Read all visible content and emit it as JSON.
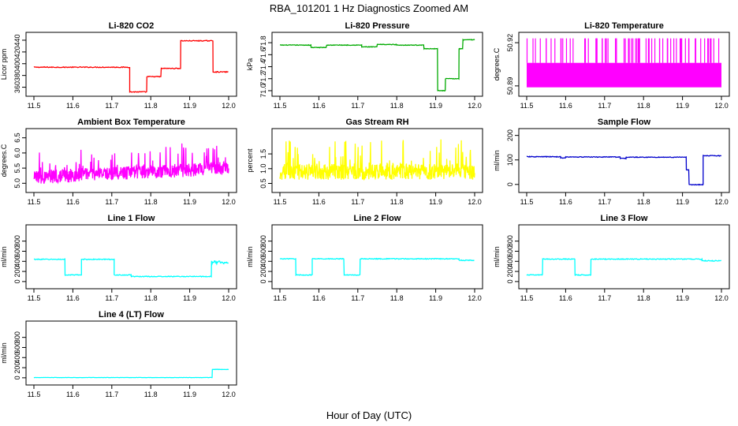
{
  "title": "RBA_101201  1 Hz Diagnostics Zoomed AM",
  "xlabel": "Hour of Day (UTC)",
  "chart_data": [
    {
      "type": "line",
      "title": "Li-820 CO2",
      "ylabel": "Licor ppm",
      "color": "#ff0000",
      "xlim": [
        11.5,
        12.0
      ],
      "ylim": [
        350,
        448
      ],
      "xticks": [
        "11.5",
        "11.6",
        "11.7",
        "11.8",
        "11.9",
        "12.0"
      ],
      "yticks": [
        "360",
        "380",
        "400",
        "420",
        "440"
      ],
      "noise": 0.7,
      "segments": [
        {
          "x0": 11.5,
          "x1": 11.746,
          "y": 394
        },
        {
          "x0": 11.746,
          "x1": 11.79,
          "y": 352
        },
        {
          "x0": 11.79,
          "x1": 11.827,
          "y": 378
        },
        {
          "x0": 11.827,
          "x1": 11.877,
          "y": 392
        },
        {
          "x0": 11.877,
          "x1": 11.96,
          "y": 439
        },
        {
          "x0": 11.96,
          "x1": 12.0,
          "y": 386
        }
      ]
    },
    {
      "type": "line",
      "title": "Li-820 Pressure",
      "ylabel": "kPa",
      "color": "#00aa00",
      "xlim": [
        11.5,
        12.0
      ],
      "ylim": [
        70.96,
        71.92
      ],
      "xticks": [
        "11.5",
        "11.6",
        "11.7",
        "11.8",
        "11.9",
        "12.0"
      ],
      "yticks": [
        "71.0",
        "71.2",
        "71.4",
        "71.6",
        "71.8"
      ],
      "noise": 0.005,
      "segments": [
        {
          "x0": 11.5,
          "x1": 11.58,
          "y": 71.76
        },
        {
          "x0": 11.58,
          "x1": 11.62,
          "y": 71.72
        },
        {
          "x0": 11.62,
          "x1": 11.71,
          "y": 71.76
        },
        {
          "x0": 11.71,
          "x1": 11.75,
          "y": 71.73
        },
        {
          "x0": 11.75,
          "x1": 11.8,
          "y": 71.77
        },
        {
          "x0": 11.8,
          "x1": 11.87,
          "y": 71.76
        },
        {
          "x0": 11.87,
          "x1": 11.905,
          "y": 71.7
        },
        {
          "x0": 11.905,
          "x1": 11.925,
          "y": 71.0
        },
        {
          "x0": 11.925,
          "x1": 11.96,
          "y": 71.2
        },
        {
          "x0": 11.96,
          "x1": 11.97,
          "y": 71.7
        },
        {
          "x0": 11.97,
          "x1": 12.0,
          "y": 71.85
        }
      ]
    },
    {
      "type": "line",
      "title": "Li-820 Temperature",
      "ylabel": "degrees.C",
      "color": "#ff00ff",
      "xlim": [
        11.5,
        12.0
      ],
      "ylim": [
        50.885,
        50.925
      ],
      "xticks": [
        "11.5",
        "11.6",
        "11.7",
        "11.8",
        "11.9",
        "12.0"
      ],
      "yticks": [
        "50.89",
        "50.92"
      ],
      "band": {
        "low": 50.889,
        "high": 50.906
      },
      "spikes_to": 50.923
    },
    {
      "type": "line",
      "title": "Ambient Box Temperature",
      "ylabel": "degrees.C",
      "color": "#ff00ff",
      "xlim": [
        11.5,
        12.0
      ],
      "ylim": [
        4.8,
        6.7
      ],
      "xticks": [
        "11.5",
        "11.6",
        "11.7",
        "11.8",
        "11.9",
        "12.0"
      ],
      "yticks": [
        "5.0",
        "5.5",
        "6.0",
        "6.5"
      ],
      "noisy": {
        "center_start": 5.2,
        "center_end": 5.5,
        "amp": 0.45
      }
    },
    {
      "type": "line",
      "title": "Gas Stream RH",
      "ylabel": "percent",
      "color": "#ffff00",
      "xlim": [
        11.5,
        12.0
      ],
      "ylim": [
        0.3,
        2.25
      ],
      "xticks": [
        "11.5",
        "11.6",
        "11.7",
        "11.8",
        "11.9",
        "12.0"
      ],
      "yticks": [
        "0.5",
        "1.0",
        "1.5"
      ],
      "noisy": {
        "center_start": 0.9,
        "center_end": 0.9,
        "amp": 0.55
      }
    },
    {
      "type": "line",
      "title": "Sample Flow",
      "ylabel": "ml/min",
      "color": "#0000cc",
      "xlim": [
        11.5,
        12.0
      ],
      "ylim": [
        -20,
        215
      ],
      "xticks": [
        "11.5",
        "11.6",
        "11.7",
        "11.8",
        "11.9",
        "12.0"
      ],
      "yticks": [
        "0",
        "100",
        "200"
      ],
      "noise": 1.5,
      "segments": [
        {
          "x0": 11.5,
          "x1": 11.587,
          "y": 113
        },
        {
          "x0": 11.587,
          "x1": 11.6,
          "y": 108
        },
        {
          "x0": 11.6,
          "x1": 11.74,
          "y": 112
        },
        {
          "x0": 11.74,
          "x1": 11.755,
          "y": 106
        },
        {
          "x0": 11.755,
          "x1": 11.91,
          "y": 111
        },
        {
          "x0": 11.91,
          "x1": 11.917,
          "y": 60
        },
        {
          "x0": 11.917,
          "x1": 11.953,
          "y": -1
        },
        {
          "x0": 11.953,
          "x1": 12.0,
          "y": 117
        }
      ]
    },
    {
      "type": "line",
      "title": "Line 1 Flow",
      "ylabel": "ml/min",
      "color": "#00ffff",
      "xlim": [
        11.5,
        12.0
      ],
      "ylim": [
        -80,
        1060
      ],
      "xticks": [
        "11.5",
        "11.6",
        "11.7",
        "11.8",
        "11.9",
        "12.0"
      ],
      "yticks": [
        "0",
        "200",
        "400",
        "600",
        "800"
      ],
      "noise": 8,
      "segments": [
        {
          "x0": 11.5,
          "x1": 11.58,
          "y": 440
        },
        {
          "x0": 11.58,
          "x1": 11.622,
          "y": 130
        },
        {
          "x0": 11.622,
          "x1": 11.706,
          "y": 440
        },
        {
          "x0": 11.706,
          "x1": 11.75,
          "y": 130
        },
        {
          "x0": 11.75,
          "x1": 11.956,
          "y": 100
        },
        {
          "x0": 11.956,
          "x1": 12.0,
          "y": 380,
          "noise": 30
        }
      ]
    },
    {
      "type": "line",
      "title": "Line 2 Flow",
      "ylabel": "ml/min",
      "color": "#00ffff",
      "xlim": [
        11.5,
        12.0
      ],
      "ylim": [
        -80,
        1060
      ],
      "xticks": [
        "11.5",
        "11.6",
        "11.7",
        "11.8",
        "11.9",
        "12.0"
      ],
      "yticks": [
        "0",
        "200",
        "400",
        "600",
        "800"
      ],
      "noise": 8,
      "segments": [
        {
          "x0": 11.5,
          "x1": 11.541,
          "y": 450
        },
        {
          "x0": 11.541,
          "x1": 11.583,
          "y": 130
        },
        {
          "x0": 11.583,
          "x1": 11.665,
          "y": 450
        },
        {
          "x0": 11.665,
          "x1": 11.706,
          "y": 130
        },
        {
          "x0": 11.706,
          "x1": 11.96,
          "y": 450
        },
        {
          "x0": 11.96,
          "x1": 12.0,
          "y": 420
        }
      ]
    },
    {
      "type": "line",
      "title": "Line 3 Flow",
      "ylabel": "ml/min",
      "color": "#00ffff",
      "xlim": [
        11.5,
        12.0
      ],
      "ylim": [
        -80,
        1060
      ],
      "xticks": [
        "11.5",
        "11.6",
        "11.7",
        "11.8",
        "11.9",
        "12.0"
      ],
      "yticks": [
        "0",
        "200",
        "400",
        "600",
        "800"
      ],
      "noise": 8,
      "segments": [
        {
          "x0": 11.5,
          "x1": 11.541,
          "y": 130
        },
        {
          "x0": 11.541,
          "x1": 11.624,
          "y": 445
        },
        {
          "x0": 11.624,
          "x1": 11.665,
          "y": 130
        },
        {
          "x0": 11.665,
          "x1": 11.95,
          "y": 445
        },
        {
          "x0": 11.95,
          "x1": 12.0,
          "y": 410
        }
      ]
    },
    {
      "type": "line",
      "title": "Line 4 (LT) Flow",
      "ylabel": "ml/min",
      "color": "#00ffff",
      "xlim": [
        11.5,
        12.0
      ],
      "ylim": [
        -80,
        1060
      ],
      "xticks": [
        "11.5",
        "11.6",
        "11.7",
        "11.8",
        "11.9",
        "12.0"
      ],
      "yticks": [
        "0",
        "200",
        "400",
        "600",
        "800"
      ],
      "noise": 3,
      "segments": [
        {
          "x0": 11.5,
          "x1": 11.958,
          "y": 5
        },
        {
          "x0": 11.958,
          "x1": 12.0,
          "y": 165
        }
      ]
    }
  ]
}
